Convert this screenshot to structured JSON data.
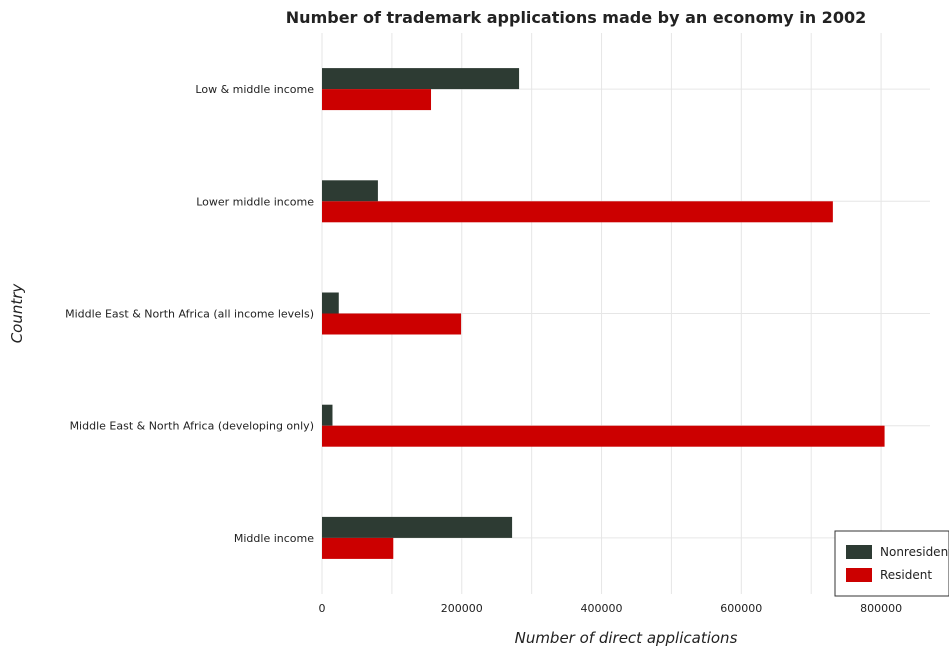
{
  "chart_data": {
    "type": "bar",
    "orientation": "horizontal",
    "title": "Number of trademark applications made by an economy in 2002",
    "xlabel": "Number of direct applications",
    "ylabel": "Country",
    "categories": [
      "Low & middle income",
      "Lower middle income",
      "Middle East & North Africa (all income levels)",
      "Middle East & North Africa (developing only)",
      "Middle income"
    ],
    "series": [
      {
        "name": "Nonresident",
        "color": "#2d3b33",
        "values": [
          282000,
          80000,
          24000,
          15000,
          272000
        ]
      },
      {
        "name": "Resident",
        "color": "#cc0000",
        "values": [
          156000,
          731000,
          199000,
          805000,
          102000
        ]
      }
    ],
    "xlim": [
      0,
      870000
    ],
    "xticks": [
      0,
      200000,
      400000,
      600000,
      800000
    ],
    "xtick_labels": [
      "0",
      "200000",
      "400000",
      "600000",
      "800000"
    ],
    "grid": true,
    "legend_position": "bottom-right"
  }
}
